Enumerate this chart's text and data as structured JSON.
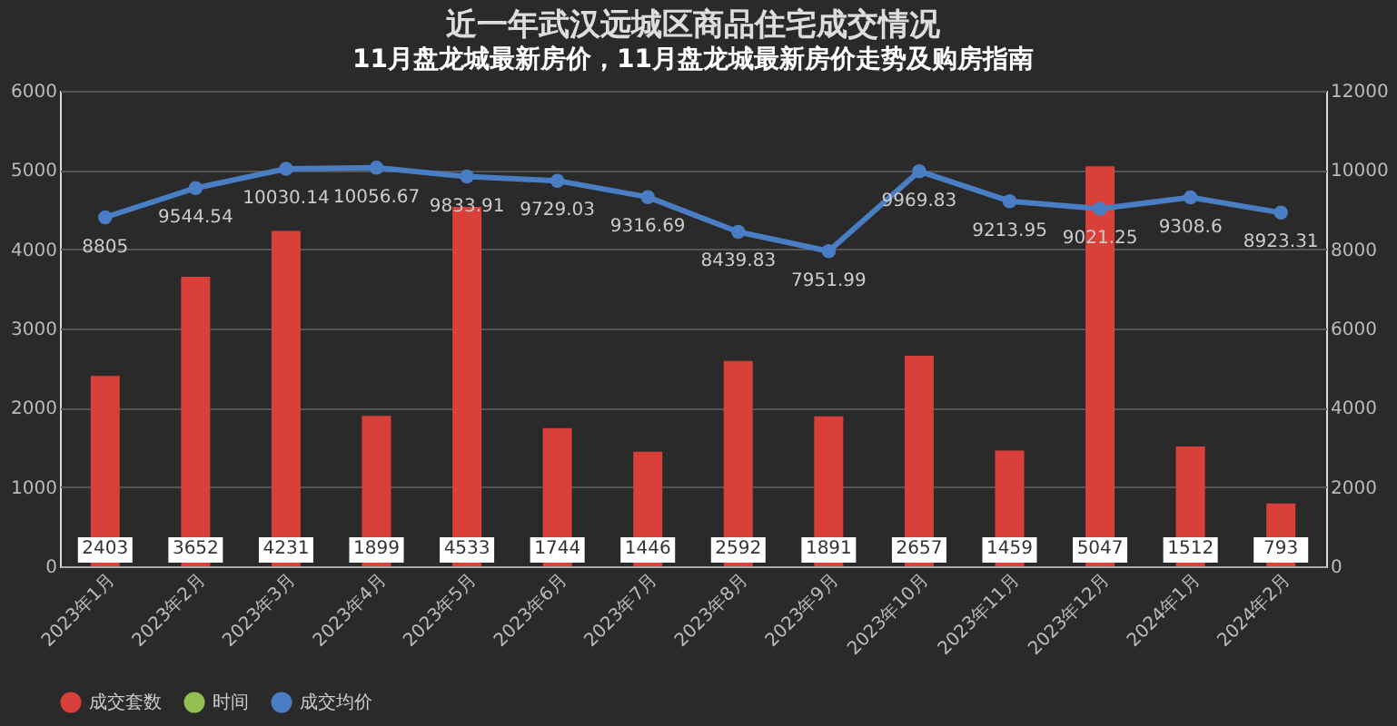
{
  "chart_data": {
    "type": "bar",
    "title": "近一年武汉远城区商品住宅成交情况",
    "subtitle": "11月盘龙城最新房价，11月盘龙城最新房价走势及购房指南",
    "categories": [
      "2023年1月",
      "2023年2月",
      "2023年3月",
      "2023年4月",
      "2023年5月",
      "2023年6月",
      "2023年7月",
      "2023年8月",
      "2023年9月",
      "2023年10月",
      "2023年11月",
      "2023年12月",
      "2024年1月",
      "2024年2月"
    ],
    "series": [
      {
        "name": "成交套数",
        "color": "#d9403a",
        "values": [
          2403,
          3652,
          4231,
          1899,
          4533,
          1744,
          1446,
          2592,
          1891,
          2657,
          1459,
          5047,
          1512,
          793
        ]
      },
      {
        "name": "时间",
        "type": "line",
        "color": "#92c050",
        "values": [
          null,
          null,
          null,
          null,
          null,
          null,
          null,
          null,
          null,
          null,
          null,
          null,
          null,
          null
        ]
      },
      {
        "name": "成交均价",
        "type": "line",
        "axis": "y2",
        "color": "#4a7ec4",
        "values": [
          8805,
          9544.54,
          10030.14,
          10056.67,
          9833.91,
          9729.03,
          9316.69,
          8439.83,
          7951.99,
          9969.83,
          9213.95,
          9021.25,
          9308.6,
          8923.31
        ]
      }
    ],
    "ylim": [
      0,
      6000
    ],
    "yticks": [
      0,
      1000,
      2000,
      3000,
      4000,
      5000,
      6000
    ],
    "y2lim": [
      0,
      12000
    ],
    "y2ticks": [
      0,
      2000,
      4000,
      6000,
      8000,
      10000,
      12000
    ],
    "grid": "y",
    "legend": "bottom",
    "marker": "circle",
    "data_labels": true
  }
}
